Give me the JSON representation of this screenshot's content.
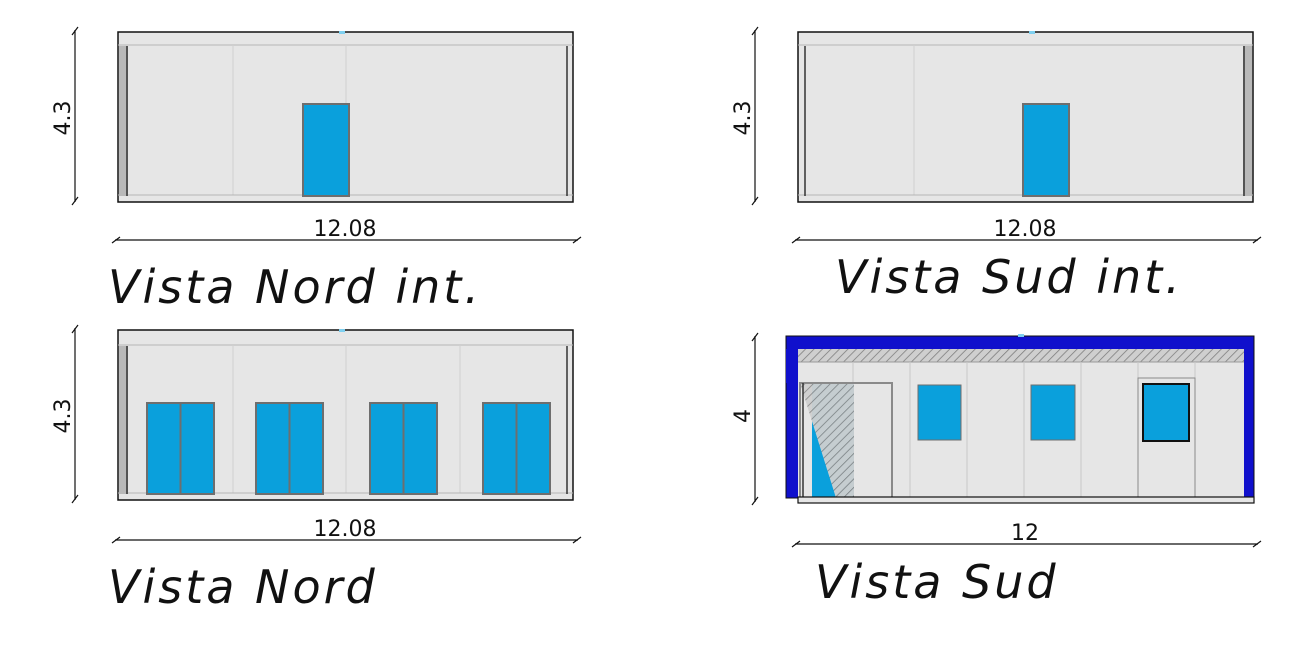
{
  "elevations": [
    {
      "id": "nord-int",
      "title": "Vista Nord int.",
      "width_label": "12.08",
      "height_label": "4.3"
    },
    {
      "id": "sud-int",
      "title": "Vista Sud int.",
      "width_label": "12.08",
      "height_label": "4.3"
    },
    {
      "id": "nord",
      "title": "Vista Nord",
      "width_label": "12.08",
      "height_label": "4.3"
    },
    {
      "id": "sud",
      "title": "Vista Sud",
      "width_label": "12",
      "height_label": "4"
    }
  ],
  "colors": {
    "wall": "#e6e6e6",
    "glass": "#0aa0dc",
    "frame": "#6e6e6e",
    "blue_frame": "#1010cc",
    "line": "#111111"
  }
}
